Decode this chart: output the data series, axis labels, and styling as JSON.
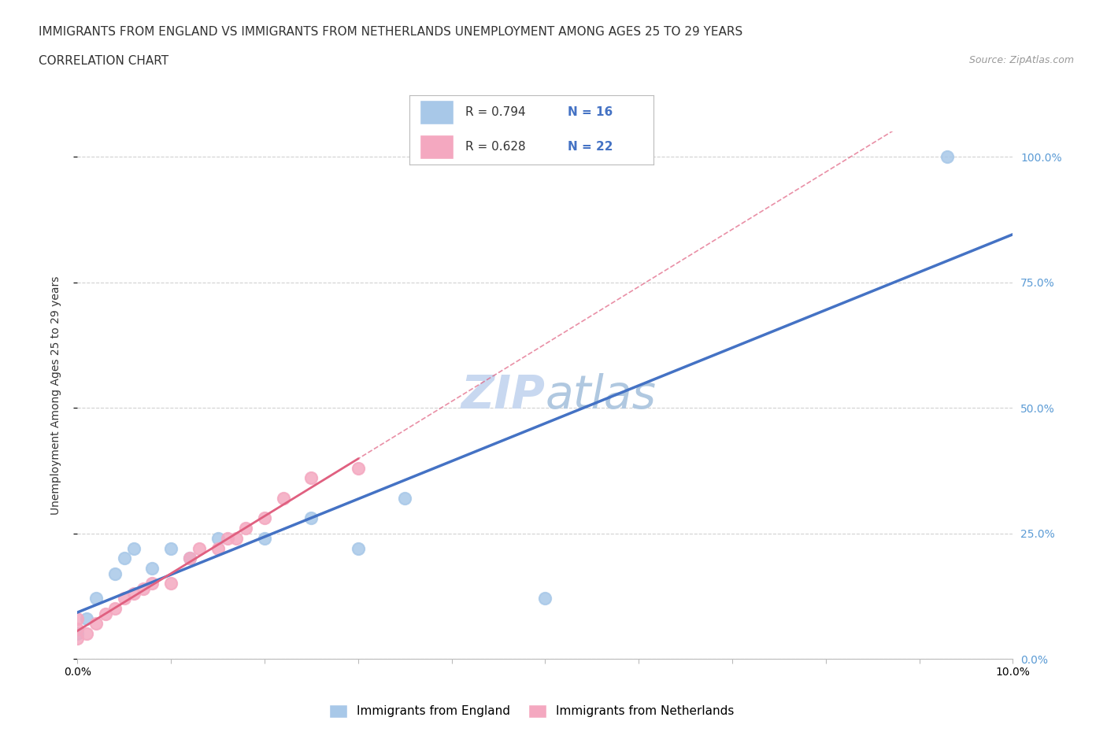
{
  "title_line1": "IMMIGRANTS FROM ENGLAND VS IMMIGRANTS FROM NETHERLANDS UNEMPLOYMENT AMONG AGES 25 TO 29 YEARS",
  "title_line2": "CORRELATION CHART",
  "source_text": "Source: ZipAtlas.com",
  "ylabel": "Unemployment Among Ages 25 to 29 years",
  "watermark_part1": "ZIP",
  "watermark_part2": "atlas",
  "england_R": 0.794,
  "england_N": 16,
  "netherlands_R": 0.628,
  "netherlands_N": 22,
  "england_scatter_color": "#a8c8e8",
  "netherlands_scatter_color": "#f4a8c0",
  "england_line_color": "#4472c4",
  "netherlands_solid_line_color": "#e06080",
  "netherlands_dash_line_color": "#e06080",
  "xlim": [
    0.0,
    0.1
  ],
  "ylim": [
    0.0,
    1.05
  ],
  "ytick_values": [
    0.0,
    0.25,
    0.5,
    0.75,
    1.0
  ],
  "ytick_labels": [
    "0.0%",
    "25.0%",
    "50.0%",
    "75.0%",
    "100.0%"
  ],
  "ytick_color": "#5b9bd5",
  "england_x": [
    0.0,
    0.001,
    0.002,
    0.004,
    0.005,
    0.006,
    0.008,
    0.01,
    0.012,
    0.015,
    0.02,
    0.025,
    0.03,
    0.035,
    0.05,
    0.093
  ],
  "england_y": [
    0.05,
    0.08,
    0.12,
    0.17,
    0.2,
    0.22,
    0.18,
    0.22,
    0.2,
    0.24,
    0.24,
    0.28,
    0.22,
    0.32,
    0.12,
    1.0
  ],
  "netherlands_x": [
    0.0,
    0.0,
    0.0,
    0.001,
    0.002,
    0.003,
    0.004,
    0.005,
    0.006,
    0.007,
    0.008,
    0.01,
    0.012,
    0.013,
    0.015,
    0.016,
    0.017,
    0.018,
    0.02,
    0.022,
    0.025,
    0.03
  ],
  "netherlands_y": [
    0.04,
    0.06,
    0.08,
    0.05,
    0.07,
    0.09,
    0.1,
    0.12,
    0.13,
    0.14,
    0.15,
    0.15,
    0.2,
    0.22,
    0.22,
    0.24,
    0.24,
    0.26,
    0.28,
    0.32,
    0.36,
    0.38
  ],
  "netherlands_outlier_x": [
    0.02
  ],
  "netherlands_outlier_y": [
    0.38
  ],
  "legend_label_england": "Immigrants from England",
  "legend_label_netherlands": "Immigrants from Netherlands",
  "background_color": "#ffffff",
  "grid_color": "#cccccc",
  "title_fontsize": 11,
  "axis_label_fontsize": 10,
  "tick_fontsize": 10,
  "watermark_fontsize": 42,
  "watermark_color_1": "#c8d8f0",
  "watermark_color_2": "#b0c8e0"
}
